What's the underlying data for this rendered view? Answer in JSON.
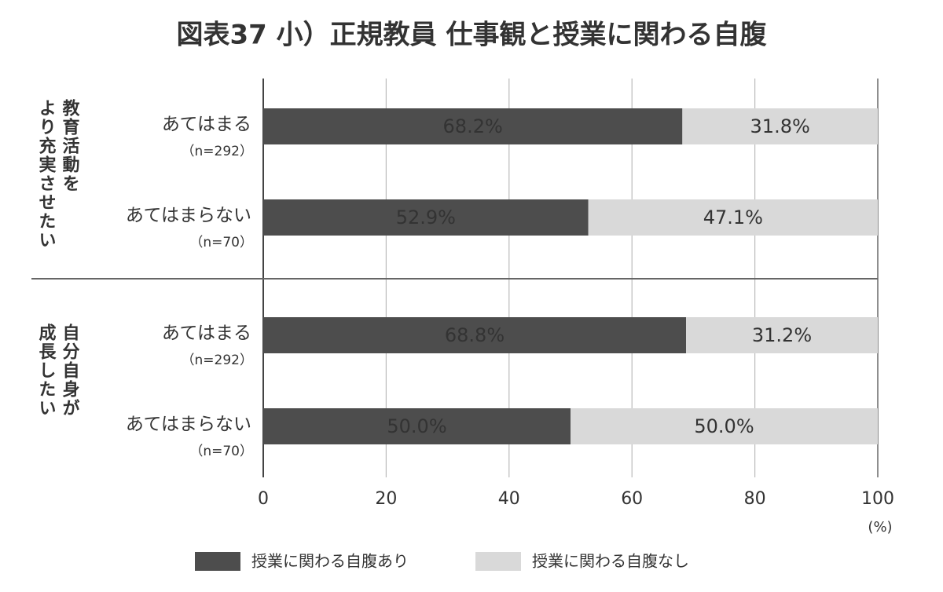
{
  "chart_data": {
    "type": "stacked-barh",
    "title": "図表37 小）正規教員 仕事観と授業に関わる自腹",
    "group_labels": [
      [
        "教育活動を",
        "より充実させたい"
      ],
      [
        "自分自身が",
        "成長したい"
      ]
    ],
    "categories": [
      "あてはまる",
      "あてはまらない",
      "あてはまる",
      "あてはまらない"
    ],
    "sample_sizes": [
      "（n=292）",
      "（n=70）",
      "（n=292）",
      "（n=70）"
    ],
    "series": [
      {
        "name": "授業に関わる自腹あり",
        "color": "#4d4d4d",
        "label_color": "#ffffff",
        "values": [
          68.2,
          52.9,
          68.8,
          50.0
        ],
        "value_labels": [
          "68.2%",
          "52.9%",
          "68.8%",
          "50.0%"
        ]
      },
      {
        "name": "授業に関わる自腹なし",
        "color": "#d9d9d9",
        "label_color": "#333333",
        "values": [
          31.8,
          47.1,
          31.2,
          50.0
        ],
        "value_labels": [
          "31.8%",
          "47.1%",
          "31.2%",
          "50.0%"
        ]
      }
    ],
    "xlim": [
      0,
      100
    ],
    "xticks": [
      0,
      20,
      40,
      60,
      80,
      100
    ],
    "x_unit": "(%)",
    "grid": true
  }
}
